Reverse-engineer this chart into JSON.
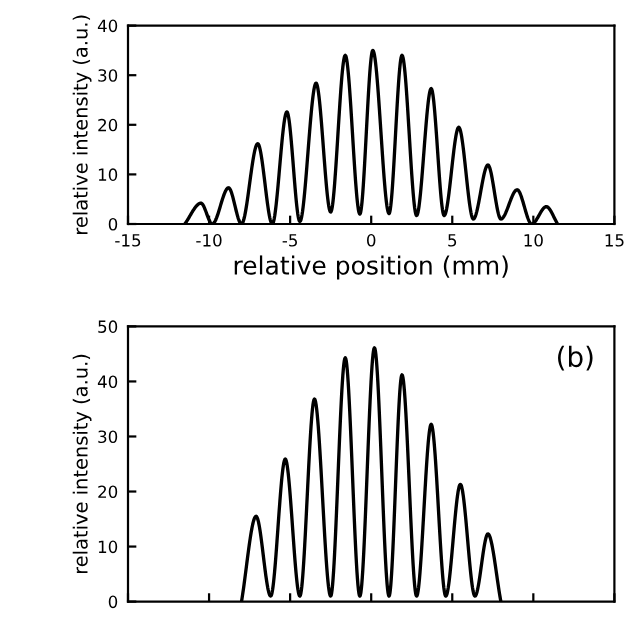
{
  "chart_data": [
    {
      "type": "line",
      "xlabel": "relative position (mm)",
      "ylabel": "relative intensity (a.u.)",
      "xlim": [
        -15,
        15
      ],
      "xticks": [
        -15,
        -10,
        -5,
        0,
        5,
        10,
        15
      ],
      "ylim": [
        0,
        40
      ],
      "yticks": [
        0,
        10,
        20,
        30,
        40
      ],
      "grid": false,
      "legend": false,
      "marker": "none",
      "line_style": "solid",
      "series": [
        {
          "color": "#000000",
          "x": [
            -11.5,
            -10.5,
            -9.8,
            -8.8,
            -8.0,
            -7.0,
            -6.1,
            -5.2,
            -4.4,
            -3.4,
            -2.5,
            -1.6,
            -0.7,
            0.1,
            1.1,
            1.9,
            2.8,
            3.7,
            4.5,
            5.4,
            6.3,
            7.2,
            8.0,
            9.0,
            9.9,
            10.8,
            11.5
          ],
          "values": [
            0,
            4.2,
            0,
            7.3,
            0,
            16.2,
            0,
            22.6,
            0.5,
            28.4,
            2.4,
            34,
            2,
            35,
            2.1,
            34,
            1.7,
            27.3,
            1.7,
            19.5,
            1,
            11.9,
            1,
            6.9,
            0,
            3.5,
            0
          ]
        }
      ]
    },
    {
      "type": "line",
      "ylabel": "relative intensity (a.u.)",
      "annotations": [
        "(b)"
      ],
      "xlim": [
        -15,
        15
      ],
      "ylim": [
        0,
        50
      ],
      "yticks": [
        0,
        10,
        20,
        30,
        40,
        50
      ],
      "tick_labels": "y",
      "grid": false,
      "legend": false,
      "marker": "none",
      "line_style": "solid",
      "series": [
        {
          "color": "#000000",
          "x": [
            -8.0,
            -7.1,
            -6.2,
            -5.3,
            -4.4,
            -3.5,
            -2.5,
            -1.6,
            -0.7,
            0.2,
            1.1,
            1.9,
            2.8,
            3.7,
            4.6,
            5.5,
            6.4,
            7.2,
            8.0
          ],
          "values": [
            0,
            15.5,
            1,
            25.9,
            1,
            36.8,
            1,
            44.3,
            1,
            46.1,
            1,
            41.2,
            1,
            32.2,
            1,
            21.3,
            1,
            12.3,
            0
          ]
        }
      ]
    }
  ]
}
